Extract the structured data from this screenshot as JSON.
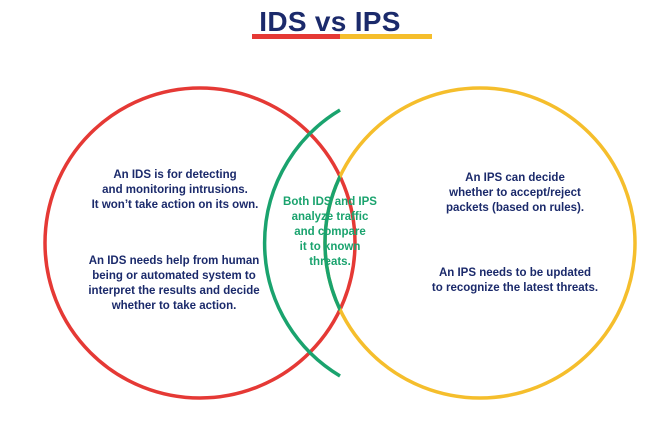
{
  "title": "IDS vs IPS",
  "colors": {
    "title": "#1b2a6b",
    "ids_circle": "#e53935",
    "ips_circle": "#f5be2c",
    "overlap": "#1aa36e",
    "text": "#1b2a6b",
    "underline_red": "#e53935",
    "underline_yellow": "#f5be2c"
  },
  "ids": {
    "text_1": "An IDS is for detecting\nand monitoring intrusions.\nIt won’t take action on its own.",
    "text_2": "An IDS needs help from human\nbeing or automated system to\ninterpret the results and decide\nwhether to take action."
  },
  "both": {
    "text": "Both IDS and IPS\nanalyze traffic\nand compare\nit to known\nthreats."
  },
  "ips": {
    "text_1": "An IPS can decide\nwhether to accept/reject\npackets (based on rules).",
    "text_2": "An IPS needs to be updated\nto recognize the latest threats."
  }
}
